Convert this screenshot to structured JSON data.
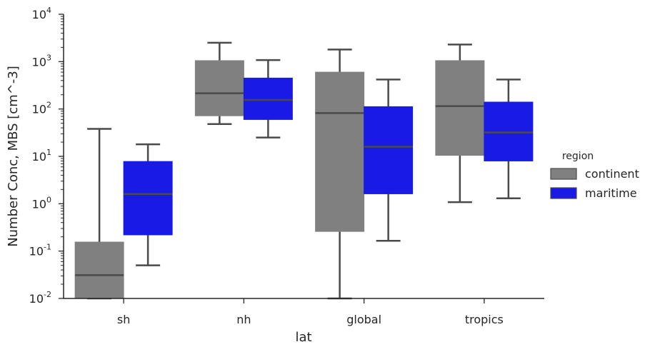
{
  "chart_data": {
    "type": "boxplot",
    "title": "",
    "xlabel": "lat",
    "ylabel": "Number Conc, MBS [cm^-3]",
    "yscale": "log",
    "ylim": [
      0.01,
      10000
    ],
    "categories": [
      "sh",
      "nh",
      "global",
      "tropics"
    ],
    "y_ticks": [
      {
        "base": "10",
        "exp": "-2"
      },
      {
        "base": "10",
        "exp": "-1"
      },
      {
        "base": "10",
        "exp": "0"
      },
      {
        "base": "10",
        "exp": "1"
      },
      {
        "base": "10",
        "exp": "2"
      },
      {
        "base": "10",
        "exp": "3"
      },
      {
        "base": "10",
        "exp": "4"
      }
    ],
    "legend": {
      "title": "region",
      "position": "right"
    },
    "series": [
      {
        "name": "continent",
        "color": "#808080",
        "boxes": [
          {
            "whisker_low": 0.01,
            "q1": 0.01,
            "median": 0.031,
            "q3": 0.155,
            "whisker_high": 38
          },
          {
            "whisker_low": 48,
            "q1": 72,
            "median": 215,
            "q3": 1050,
            "whisker_high": 2500
          },
          {
            "whisker_low": 0.01,
            "q1": 0.26,
            "median": 82,
            "q3": 600,
            "whisker_high": 1800
          },
          {
            "whisker_low": 1.08,
            "q1": 10.5,
            "median": 115,
            "q3": 1050,
            "whisker_high": 2300
          }
        ]
      },
      {
        "name": "maritime",
        "color": "#1a1ae6",
        "boxes": [
          {
            "whisker_low": 0.05,
            "q1": 0.22,
            "median": 1.6,
            "q3": 7.8,
            "whisker_high": 18
          },
          {
            "whisker_low": 25,
            "q1": 60,
            "median": 155,
            "q3": 450,
            "whisker_high": 1080
          },
          {
            "whisker_low": 0.165,
            "q1": 1.62,
            "median": 16,
            "q3": 112,
            "whisker_high": 420
          },
          {
            "whisker_low": 1.3,
            "q1": 8,
            "median": 32,
            "q3": 140,
            "whisker_high": 420
          }
        ]
      }
    ]
  }
}
